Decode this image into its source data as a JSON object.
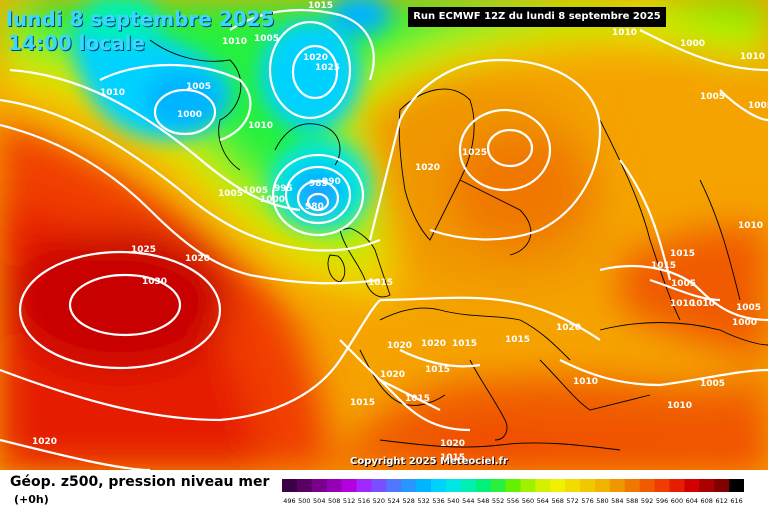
{
  "header": {
    "date_line": "lundi 8 septembre 2025",
    "time_line": "14:00 locale",
    "run_info": "Run ECMWF 12Z du lundi 8 septembre 2025"
  },
  "footer": {
    "copyright": "Copyright 2025 Meteociel.fr",
    "legend_title": "Géop. z500, pression niveau mer",
    "legend_subtitle": "(+0h)"
  },
  "scale": {
    "values": [
      "496",
      "500",
      "504",
      "508",
      "512",
      "516",
      "520",
      "524",
      "528",
      "532",
      "536",
      "540",
      "544",
      "548",
      "552",
      "556",
      "560",
      "564",
      "568",
      "572",
      "576",
      "580",
      "584",
      "588",
      "592",
      "596",
      "600",
      "604",
      "608",
      "612",
      "616"
    ],
    "colors": [
      "#3c0046",
      "#5a0064",
      "#78008c",
      "#9600b4",
      "#b400dc",
      "#a028ff",
      "#7850ff",
      "#5078ff",
      "#2896ff",
      "#00b4ff",
      "#00d2ff",
      "#00e6e6",
      "#00f0b4",
      "#00f078",
      "#28f03c",
      "#64f000",
      "#a0f000",
      "#d2f000",
      "#f0f000",
      "#f0dc00",
      "#f0c800",
      "#f0b400",
      "#f09600",
      "#f07800",
      "#f05a00",
      "#f03c00",
      "#e61e00",
      "#d20000",
      "#aa0000",
      "#820000",
      "#000000"
    ]
  },
  "pressure_labels": [
    {
      "text": "1015"
    },
    {
      "text": "1010"
    },
    {
      "text": "1005"
    },
    {
      "text": "1020"
    },
    {
      "text": "1025"
    },
    {
      "text": "1010"
    },
    {
      "text": "1005"
    },
    {
      "text": "1000"
    },
    {
      "text": "1010"
    },
    {
      "text": "1005"
    },
    {
      "text": "1005"
    },
    {
      "text": "1000"
    },
    {
      "text": "995"
    },
    {
      "text": "985"
    },
    {
      "text": "990"
    },
    {
      "text": "980"
    },
    {
      "text": "1025"
    },
    {
      "text": "1030"
    },
    {
      "text": "1020"
    },
    {
      "text": "1025"
    },
    {
      "text": "1020"
    },
    {
      "text": "1015"
    },
    {
      "text": "1010"
    },
    {
      "text": "1000"
    },
    {
      "text": "1005"
    },
    {
      "text": "1010"
    },
    {
      "text": "1005"
    },
    {
      "text": "1010"
    },
    {
      "text": "1015"
    },
    {
      "text": "1015"
    },
    {
      "text": "1005"
    },
    {
      "text": "1010"
    },
    {
      "text": "1010"
    },
    {
      "text": "1000"
    },
    {
      "text": "1005"
    },
    {
      "text": "1020"
    },
    {
      "text": "1020"
    },
    {
      "text": "1015"
    },
    {
      "text": "1015"
    },
    {
      "text": "1020"
    },
    {
      "text": "1015"
    },
    {
      "text": "1015"
    },
    {
      "text": "1010"
    },
    {
      "text": "1005"
    },
    {
      "text": "1010"
    },
    {
      "text": "1020"
    },
    {
      "text": "1015"
    },
    {
      "text": "1020"
    },
    {
      "text": "1015"
    },
    {
      "text": "1020"
    }
  ]
}
